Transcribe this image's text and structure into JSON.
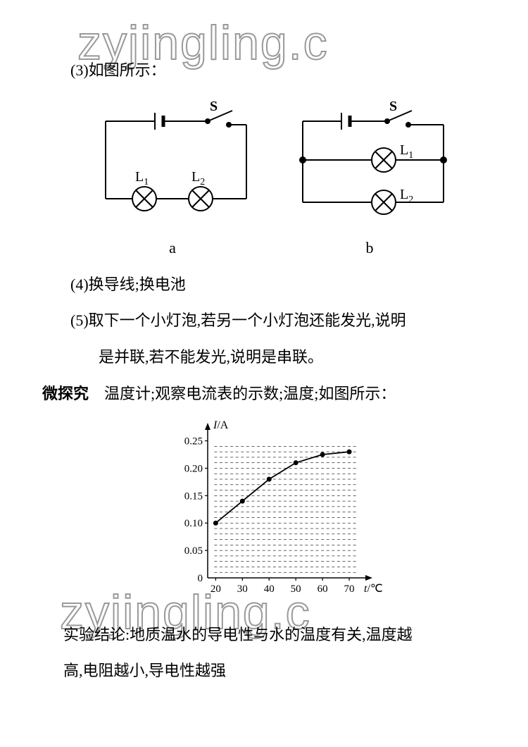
{
  "watermark_text": "zyjingling.c",
  "items": {
    "item3": {
      "prefix": "(3)",
      "text": "如图所示："
    },
    "item4": {
      "prefix": "(4)",
      "text": "换导线;换电池"
    },
    "item5": {
      "prefix": "(5)",
      "line1": "取下一个小灯泡,若另一个小灯泡还能发光,说明",
      "line2": "是并联,若不能发光,说明是串联。"
    }
  },
  "circuits": {
    "a_label": "a",
    "b_label": "b",
    "switch_label": "S",
    "L1_label": "L",
    "L1_sub": "1",
    "L2_label": "L",
    "L2_sub": "2"
  },
  "micro": {
    "prefix": "微探究",
    "body": "温度计;观察电流表的示数;温度;如图所示："
  },
  "chart": {
    "y_label": "I/A",
    "x_label": "t/℃",
    "y_ticks": [
      "0",
      "0.05",
      "0.10",
      "0.15",
      "0.20",
      "0.25"
    ],
    "y_tick_values": [
      0,
      0.05,
      0.1,
      0.15,
      0.2,
      0.25
    ],
    "x_ticks": [
      "20",
      "30",
      "40",
      "50",
      "60",
      "70"
    ],
    "x_tick_values": [
      20,
      30,
      40,
      50,
      60,
      70
    ],
    "y_max": 0.27,
    "x_min": 17,
    "x_max": 75,
    "x_minor_step": 2,
    "y_minor_step": 0.01,
    "line_color": "#000000",
    "grid_color": "#000000",
    "axis_color": "#000000",
    "marker_radius": 3.5,
    "line_width": 1.8,
    "points": [
      {
        "x": 20,
        "y": 0.1
      },
      {
        "x": 30,
        "y": 0.14
      },
      {
        "x": 40,
        "y": 0.18
      },
      {
        "x": 50,
        "y": 0.21
      },
      {
        "x": 60,
        "y": 0.225
      },
      {
        "x": 70,
        "y": 0.23
      }
    ]
  },
  "conclusion": {
    "line1": "实验结论:地质温水的导电性与水的温度有关,温度越",
    "line2": "高,电阻越小,导电性越强"
  }
}
